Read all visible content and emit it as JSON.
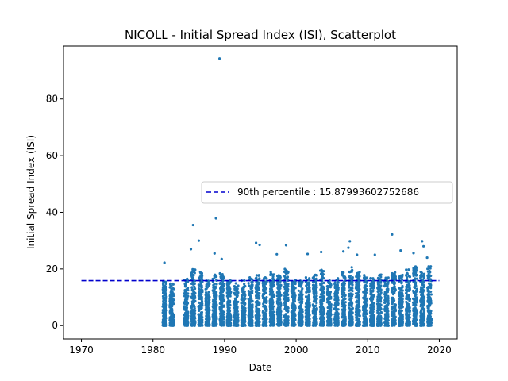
{
  "chart_data": {
    "type": "scatter",
    "title": "NICOLL - Initial Spread Index (ISI), Scatterplot",
    "xlabel": "Date",
    "ylabel": "Initial Spread Index (ISI)",
    "xlim": [
      1967.5,
      2022.5
    ],
    "ylim": [
      -4.7,
      98.7
    ],
    "x_ticks": [
      1970,
      1980,
      1990,
      2000,
      2010,
      2020
    ],
    "y_ticks": [
      0,
      20,
      40,
      60,
      80
    ],
    "point_color": "#1f77b4",
    "legend": {
      "placement": "center-right",
      "entries": [
        {
          "label": "90th percentile : 15.87993602752686",
          "style": "dashed-line",
          "color": "#0000cd"
        }
      ]
    },
    "percentile_line": {
      "value": 15.87993602752686,
      "x_range": [
        1970,
        2020
      ],
      "color": "#0000cd"
    },
    "series": [
      {
        "name": "ISI",
        "season_ranges": [
          {
            "year": 1981,
            "start": 1981.35,
            "end": 1981.9,
            "typical_max": 16
          },
          {
            "year": 1982,
            "start": 1982.35,
            "end": 1982.9,
            "typical_max": 15
          },
          {
            "year": 1984,
            "start": 1984.35,
            "end": 1984.9,
            "typical_max": 17
          },
          {
            "year": 1985,
            "start": 1985.35,
            "end": 1985.9,
            "typical_max": 20
          },
          {
            "year": 1986,
            "start": 1986.35,
            "end": 1986.9,
            "typical_max": 19
          },
          {
            "year": 1987,
            "start": 1987.35,
            "end": 1987.9,
            "typical_max": 16
          },
          {
            "year": 1988,
            "start": 1988.35,
            "end": 1988.9,
            "typical_max": 18
          },
          {
            "year": 1989,
            "start": 1989.35,
            "end": 1989.9,
            "typical_max": 19
          },
          {
            "year": 1990,
            "start": 1990.35,
            "end": 1990.9,
            "typical_max": 16
          },
          {
            "year": 1991,
            "start": 1991.35,
            "end": 1991.9,
            "typical_max": 15
          },
          {
            "year": 1992,
            "start": 1992.35,
            "end": 1992.9,
            "typical_max": 16
          },
          {
            "year": 1993,
            "start": 1993.35,
            "end": 1993.9,
            "typical_max": 17
          },
          {
            "year": 1994,
            "start": 1994.35,
            "end": 1994.9,
            "typical_max": 18
          },
          {
            "year": 1995,
            "start": 1995.35,
            "end": 1995.9,
            "typical_max": 17
          },
          {
            "year": 1996,
            "start": 1996.35,
            "end": 1996.9,
            "typical_max": 19
          },
          {
            "year": 1997,
            "start": 1997.35,
            "end": 1997.9,
            "typical_max": 18
          },
          {
            "year": 1998,
            "start": 1998.35,
            "end": 1998.9,
            "typical_max": 20
          },
          {
            "year": 1999,
            "start": 1999.35,
            "end": 1999.9,
            "typical_max": 17
          },
          {
            "year": 2000,
            "start": 2000.35,
            "end": 2000.9,
            "typical_max": 16
          },
          {
            "year": 2001,
            "start": 2001.35,
            "end": 2001.9,
            "typical_max": 17
          },
          {
            "year": 2002,
            "start": 2002.35,
            "end": 2002.9,
            "typical_max": 18
          },
          {
            "year": 2003,
            "start": 2003.35,
            "end": 2003.9,
            "typical_max": 20
          },
          {
            "year": 2004,
            "start": 2004.35,
            "end": 2004.9,
            "typical_max": 16
          },
          {
            "year": 2005,
            "start": 2005.35,
            "end": 2005.9,
            "typical_max": 17
          },
          {
            "year": 2006,
            "start": 2006.35,
            "end": 2006.9,
            "typical_max": 19
          },
          {
            "year": 2007,
            "start": 2007.35,
            "end": 2007.9,
            "typical_max": 21
          },
          {
            "year": 2008,
            "start": 2008.35,
            "end": 2008.9,
            "typical_max": 19
          },
          {
            "year": 2009,
            "start": 2009.35,
            "end": 2009.9,
            "typical_max": 18
          },
          {
            "year": 2010,
            "start": 2010.35,
            "end": 2010.9,
            "typical_max": 17
          },
          {
            "year": 2011,
            "start": 2011.35,
            "end": 2011.9,
            "typical_max": 18
          },
          {
            "year": 2012,
            "start": 2012.35,
            "end": 2012.9,
            "typical_max": 17
          },
          {
            "year": 2013,
            "start": 2013.35,
            "end": 2013.9,
            "typical_max": 19
          },
          {
            "year": 2014,
            "start": 2014.35,
            "end": 2014.9,
            "typical_max": 18
          },
          {
            "year": 2015,
            "start": 2015.35,
            "end": 2015.9,
            "typical_max": 20
          },
          {
            "year": 2016,
            "start": 2016.35,
            "end": 2016.9,
            "typical_max": 21
          },
          {
            "year": 2017,
            "start": 2017.35,
            "end": 2017.9,
            "typical_max": 19
          },
          {
            "year": 2018,
            "start": 2018.35,
            "end": 2018.9,
            "typical_max": 21
          }
        ],
        "notable_points": [
          {
            "x": 1981.6,
            "y": 22.2
          },
          {
            "x": 1985.6,
            "y": 35.5
          },
          {
            "x": 1986.4,
            "y": 30.0
          },
          {
            "x": 1985.3,
            "y": 27.0
          },
          {
            "x": 1988.8,
            "y": 37.9
          },
          {
            "x": 1989.3,
            "y": 94.3
          },
          {
            "x": 1988.6,
            "y": 25.5
          },
          {
            "x": 1989.6,
            "y": 23.5
          },
          {
            "x": 1994.4,
            "y": 29.2
          },
          {
            "x": 1994.9,
            "y": 28.5
          },
          {
            "x": 1998.6,
            "y": 28.4
          },
          {
            "x": 1997.3,
            "y": 25.2
          },
          {
            "x": 2001.6,
            "y": 25.3
          },
          {
            "x": 2003.5,
            "y": 26.0
          },
          {
            "x": 2006.6,
            "y": 26.2
          },
          {
            "x": 2007.5,
            "y": 29.8
          },
          {
            "x": 2007.3,
            "y": 27.5
          },
          {
            "x": 2008.5,
            "y": 25.0
          },
          {
            "x": 2011.0,
            "y": 25.0
          },
          {
            "x": 2013.4,
            "y": 32.2
          },
          {
            "x": 2014.6,
            "y": 26.5
          },
          {
            "x": 2016.4,
            "y": 25.6
          },
          {
            "x": 2017.6,
            "y": 29.8
          },
          {
            "x": 2017.8,
            "y": 28.0
          },
          {
            "x": 2018.3,
            "y": 24.0
          }
        ]
      }
    ]
  }
}
